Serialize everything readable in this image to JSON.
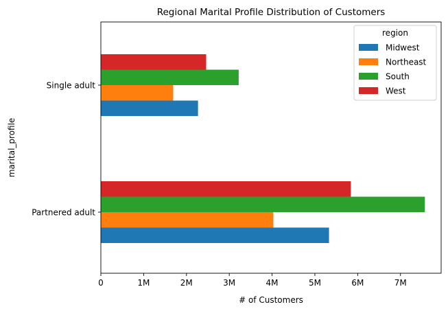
{
  "chart_data": {
    "type": "bar",
    "orientation": "horizontal",
    "title": "Regional Marital Profile Distribution of Customers",
    "xlabel": "# of Customers",
    "ylabel": "marital_profile",
    "categories": [
      "Partnered adult",
      "Single adult"
    ],
    "series": [
      {
        "name": "Midwest",
        "color": "#1f77b4",
        "values": [
          5330000,
          2270000
        ]
      },
      {
        "name": "Northeast",
        "color": "#ff7f0e",
        "values": [
          4030000,
          1690000
        ]
      },
      {
        "name": "South",
        "color": "#2ca02c",
        "values": [
          7570000,
          3220000
        ]
      },
      {
        "name": "West",
        "color": "#d62728",
        "values": [
          5840000,
          2460000
        ]
      }
    ],
    "xlim": [
      0,
      7950000
    ],
    "xticks": [
      0,
      1000000,
      2000000,
      3000000,
      4000000,
      5000000,
      6000000,
      7000000
    ],
    "xtick_labels": [
      "0",
      "1M",
      "2M",
      "3M",
      "4M",
      "5M",
      "6M",
      "7M"
    ],
    "legend": {
      "title": "region",
      "position": "top-right"
    },
    "grid": false
  }
}
